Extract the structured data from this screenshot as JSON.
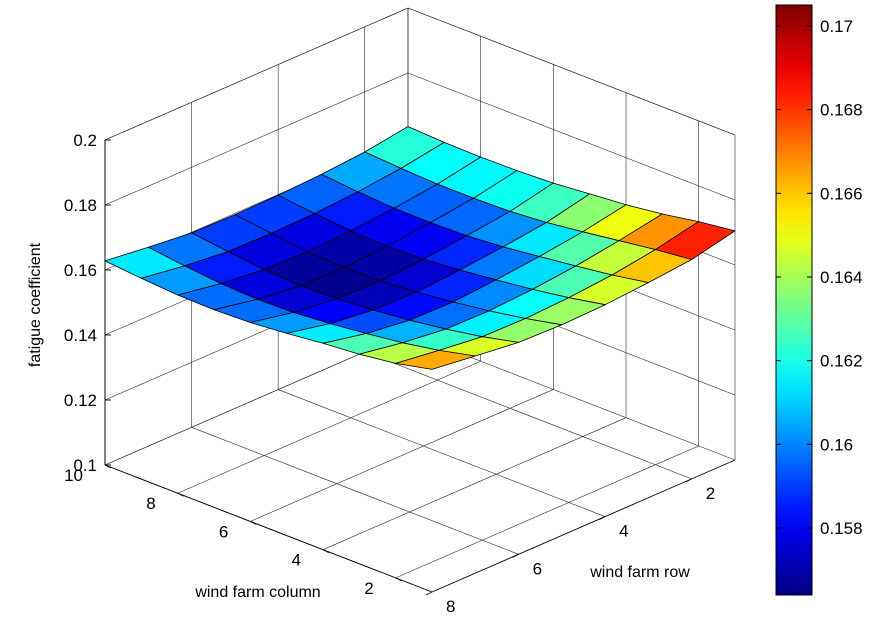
{
  "chart_data": {
    "type": "surface3d",
    "title": "",
    "xlabel": "wind farm row",
    "ylabel": "wind farm column",
    "zlabel": "fatigue coefficient",
    "x_ticks": [
      2,
      4,
      6,
      8
    ],
    "y_ticks": [
      2,
      4,
      6,
      8,
      10
    ],
    "z_ticks": [
      "0.1",
      "0.12",
      "0.14",
      "0.16",
      "0.18",
      "0.2"
    ],
    "z_tick_values": [
      0.1,
      0.12,
      0.14,
      0.16,
      0.18,
      0.2
    ],
    "xlim": [
      1,
      8
    ],
    "ylim": [
      1,
      10
    ],
    "zlim": [
      0.1,
      0.2
    ],
    "grid": true,
    "colormap": "jet",
    "colorbar": {
      "range": [
        0.1564,
        0.1705
      ],
      "ticks": [
        "0.158",
        "0.16",
        "0.162",
        "0.164",
        "0.166",
        "0.168",
        "0.17"
      ],
      "tick_values": [
        0.158,
        0.16,
        0.162,
        0.164,
        0.166,
        0.168,
        0.17
      ],
      "placement": "right"
    },
    "rows_x": [
      1,
      2,
      3,
      4,
      5,
      6,
      7,
      8
    ],
    "cols_y": [
      1,
      2,
      3,
      4,
      5,
      6,
      7,
      8,
      9,
      10
    ],
    "z": [
      [
        0.1705,
        0.169,
        0.167,
        0.1655,
        0.1645,
        0.1635,
        0.163,
        0.1628,
        0.163,
        0.1635
      ],
      [
        0.1675,
        0.1662,
        0.1646,
        0.163,
        0.1615,
        0.1606,
        0.1603,
        0.1603,
        0.1608,
        0.1615
      ],
      [
        0.1662,
        0.1642,
        0.1626,
        0.1612,
        0.1598,
        0.1589,
        0.1586,
        0.1587,
        0.1594,
        0.1604
      ],
      [
        0.1652,
        0.163,
        0.1612,
        0.1598,
        0.1585,
        0.1575,
        0.1571,
        0.1575,
        0.1585,
        0.1598
      ],
      [
        0.1648,
        0.1624,
        0.1604,
        0.1588,
        0.1575,
        0.1566,
        0.1564,
        0.1569,
        0.1582,
        0.1596
      ],
      [
        0.1652,
        0.1626,
        0.1606,
        0.159,
        0.1578,
        0.1569,
        0.1566,
        0.1572,
        0.1584,
        0.1598
      ],
      [
        0.1668,
        0.1642,
        0.1622,
        0.1607,
        0.1594,
        0.1585,
        0.1582,
        0.1587,
        0.1598,
        0.1612
      ],
      [
        0.1685,
        0.166,
        0.1645,
        0.1635,
        0.1622,
        0.1612,
        0.1608,
        0.161,
        0.1618,
        0.1628
      ]
    ]
  }
}
